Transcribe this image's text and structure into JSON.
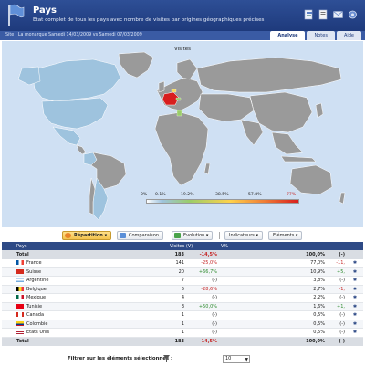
{
  "header": {
    "title": "Pays",
    "subtitle": "Etat complet de tous les pays avec nombre de visites par origines géographiques précises"
  },
  "breadcrumb": "Site : La monarque    Samedi 14/03/2009 vs Samedi 07/03/2009",
  "tabs": [
    {
      "label": "Analyse",
      "active": true
    },
    {
      "label": "Notes",
      "active": false
    },
    {
      "label": "Aide",
      "active": false
    }
  ],
  "map": {
    "title": "Visites",
    "scale_labels": [
      "0%",
      "0.1%",
      "19.2%",
      "38.5%",
      "57.8%",
      "77%"
    ]
  },
  "toolbar": {
    "repartition": "Répartition",
    "comparaison": "Comparaison",
    "evolution": "Evolution",
    "indicateurs": "Indicateurs",
    "elements": "Eléments"
  },
  "table": {
    "headers": {
      "country": "Pays",
      "visits": "Visites (V)",
      "pct": "V%"
    },
    "total_label": "Total",
    "total": {
      "visits": "183",
      "change": "-14,5%",
      "pct": "100,0%",
      "mark": "(-)"
    },
    "rows": [
      {
        "country": "France",
        "visits": "141",
        "change": "-25,0%",
        "pct": "77,0%",
        "delta": "-11,",
        "dir": "neg"
      },
      {
        "country": "Suisse",
        "visits": "20",
        "change": "+66,7%",
        "pct": "10,9%",
        "delta": "+5,",
        "dir": "pos"
      },
      {
        "country": "Argentine",
        "visits": "7",
        "change": "(-)",
        "pct": "3,8%",
        "delta": "(-)",
        "dir": ""
      },
      {
        "country": "Belgique",
        "visits": "5",
        "change": "-28,6%",
        "pct": "2,7%",
        "delta": "-1,",
        "dir": "neg"
      },
      {
        "country": "Mexique",
        "visits": "4",
        "change": "(-)",
        "pct": "2,2%",
        "delta": "(-)",
        "dir": ""
      },
      {
        "country": "Tunisie",
        "visits": "3",
        "change": "+50,0%",
        "pct": "1,6%",
        "delta": "+1,",
        "dir": "pos"
      },
      {
        "country": "Canada",
        "visits": "1",
        "change": "(-)",
        "pct": "0,5%",
        "delta": "(-)",
        "dir": ""
      },
      {
        "country": "Colombie",
        "visits": "1",
        "change": "(-)",
        "pct": "0,5%",
        "delta": "(-)",
        "dir": ""
      },
      {
        "country": "Etats Unis",
        "visits": "1",
        "change": "(-)",
        "pct": "0,5%",
        "delta": "(-)",
        "dir": ""
      }
    ]
  },
  "footer": {
    "filter_label": "Filtrer sur les éléments sélectionnés :",
    "page_size": "10"
  },
  "colors": {
    "header_bg": "#2e4f96",
    "map_highlight": "#d81e1e",
    "map_light": "#9ec3de",
    "positive": "#2e8b2e",
    "negative": "#c62828"
  }
}
